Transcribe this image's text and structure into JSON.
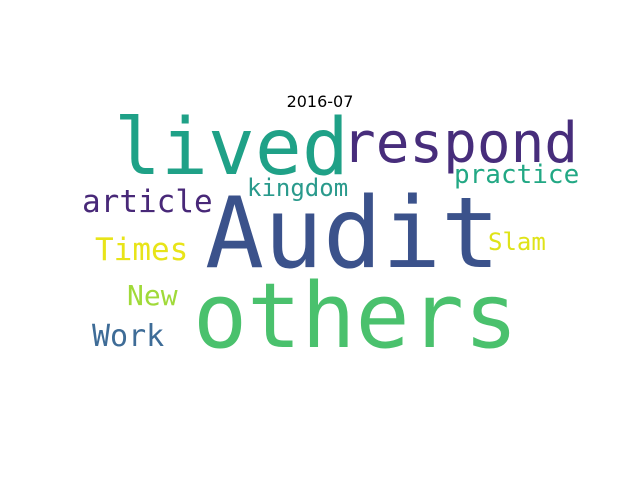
{
  "title": "2016-07",
  "words": [
    {
      "text": "Audit",
      "color": "#3b528b"
    },
    {
      "text": "others",
      "color": "#4ac16d"
    },
    {
      "text": "lived",
      "color": "#1fa187"
    },
    {
      "text": "respond",
      "color": "#472d7b"
    },
    {
      "text": "article",
      "color": "#482878"
    },
    {
      "text": "kingdom",
      "color": "#2a9a8c"
    },
    {
      "text": "practice",
      "color": "#22a884"
    },
    {
      "text": "Times",
      "color": "#e8e419"
    },
    {
      "text": "Slam",
      "color": "#dfe318"
    },
    {
      "text": "New",
      "color": "#a0da39"
    },
    {
      "text": "Work",
      "color": "#3e6c97"
    }
  ]
}
